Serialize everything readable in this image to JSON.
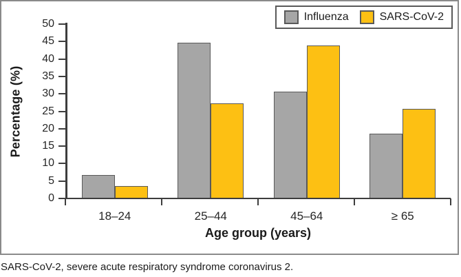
{
  "figure": {
    "footnote": "SARS-CoV-2, severe acute respiratory syndrome coronavirus 2."
  },
  "chart_data": {
    "type": "bar",
    "title": "",
    "xlabel": "Age group (years)",
    "ylabel": "Percentage (%)",
    "categories": [
      "18–24",
      "25–44",
      "45–64",
      "≥ 65"
    ],
    "series": [
      {
        "name": "Influenza",
        "color": "#a6a6a6",
        "values": [
          6.6,
          44.4,
          30.5,
          18.4
        ]
      },
      {
        "name": "SARS-CoV-2",
        "color": "#fdc013",
        "values": [
          3.3,
          27.1,
          43.7,
          25.5
        ]
      }
    ],
    "ylim": [
      0,
      50
    ],
    "yticks": [
      0,
      5,
      10,
      15,
      20,
      25,
      30,
      35,
      40,
      45,
      50
    ],
    "grid": false,
    "legend_position": "top-right",
    "bar_border_color": "#595959",
    "axis_color": "#3d3d3d"
  }
}
